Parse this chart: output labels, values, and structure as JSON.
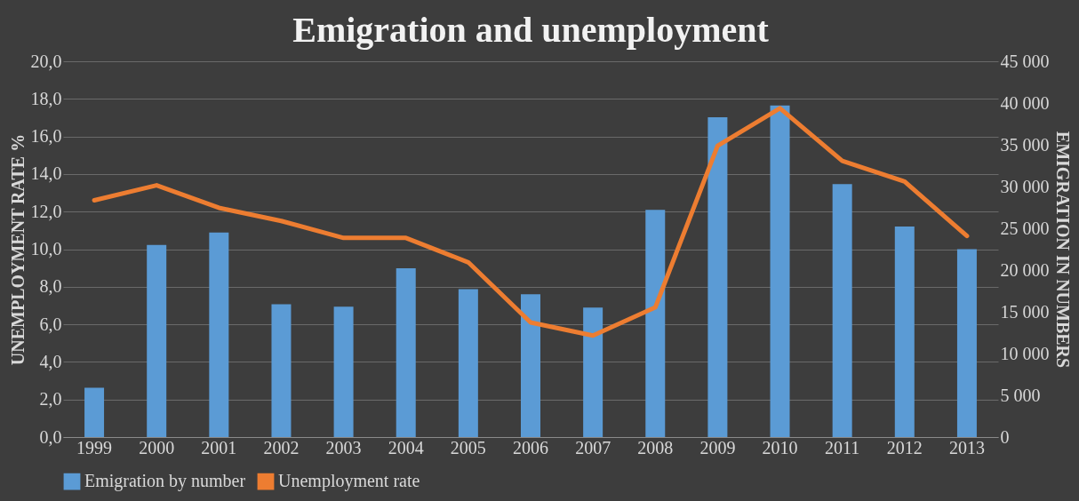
{
  "chart_data": {
    "type": "bar",
    "title": "Emigration and unemployment",
    "ylabel": "UNEMPLOYMENT RATE %",
    "y2label": "EMIGRATION IN NUMBERS",
    "categories": [
      "1999",
      "2000",
      "2001",
      "2002",
      "2003",
      "2004",
      "2005",
      "2006",
      "2007",
      "2008",
      "2009",
      "2010",
      "2011",
      "2012",
      "2013"
    ],
    "series": [
      {
        "name": "Emigration by number",
        "axis": "y2",
        "color": "#5b9bd5",
        "values": [
          5900,
          23000,
          24500,
          15900,
          15600,
          20200,
          17700,
          17100,
          15500,
          27200,
          38300,
          39700,
          30300,
          25200,
          22500
        ]
      },
      {
        "name": "Unemployment rate",
        "type": "line",
        "color": "#ed7d31",
        "values": [
          12.6,
          13.4,
          12.2,
          11.5,
          10.6,
          10.6,
          9.3,
          6.1,
          5.4,
          6.9,
          15.5,
          17.5,
          14.7,
          13.6,
          10.7
        ]
      }
    ],
    "ylim": [
      0,
      20
    ],
    "yticks": [
      {
        "value": 0,
        "label": "0,0"
      },
      {
        "value": 2,
        "label": "2,0"
      },
      {
        "value": 4,
        "label": "4,0"
      },
      {
        "value": 6,
        "label": "6,0"
      },
      {
        "value": 8,
        "label": "8,0"
      },
      {
        "value": 10,
        "label": "10,0"
      },
      {
        "value": 12,
        "label": "12,0"
      },
      {
        "value": 14,
        "label": "14,0"
      },
      {
        "value": 16,
        "label": "16,0"
      },
      {
        "value": 18,
        "label": "18,0"
      },
      {
        "value": 20,
        "label": "20,0"
      }
    ],
    "y2lim": [
      0,
      45000
    ],
    "y2ticks": [
      0,
      {
        "value": 5000,
        "label": "5 000"
      },
      {
        "value": 10000,
        "label": "10 000"
      },
      {
        "value": 15000,
        "label": "15 000"
      },
      {
        "value": 20000,
        "label": "20 000"
      },
      {
        "value": 25000,
        "label": "25 000"
      },
      {
        "value": 30000,
        "label": "30 000"
      },
      {
        "value": 35000,
        "label": "35 000"
      },
      {
        "value": 40000,
        "label": "40 000"
      },
      {
        "value": 45000,
        "label": "45 000"
      }
    ],
    "grid": "y",
    "legend": "bottom",
    "marker": "none",
    "line_style": "solid"
  }
}
